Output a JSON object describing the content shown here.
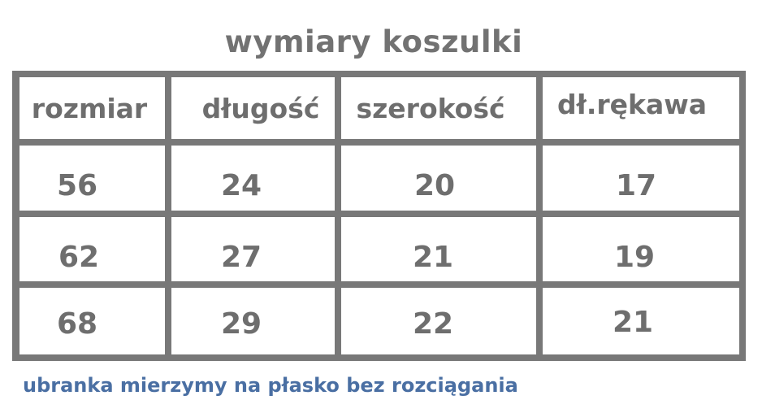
{
  "title": "wymiary koszulki",
  "table": {
    "headers": [
      "rozmiar",
      "długość",
      "szerokość",
      "dł.rękawa"
    ],
    "rows": [
      [
        "56",
        "24",
        "20",
        "17"
      ],
      [
        "62",
        "27",
        "21",
        "19"
      ],
      [
        "68",
        "29",
        "22",
        "21"
      ]
    ]
  },
  "note": "ubranka mierzymy na płasko bez rozciągania",
  "colors": {
    "grid": "#787878",
    "text": "#6e6e6e",
    "note": "#4a6fa3"
  }
}
